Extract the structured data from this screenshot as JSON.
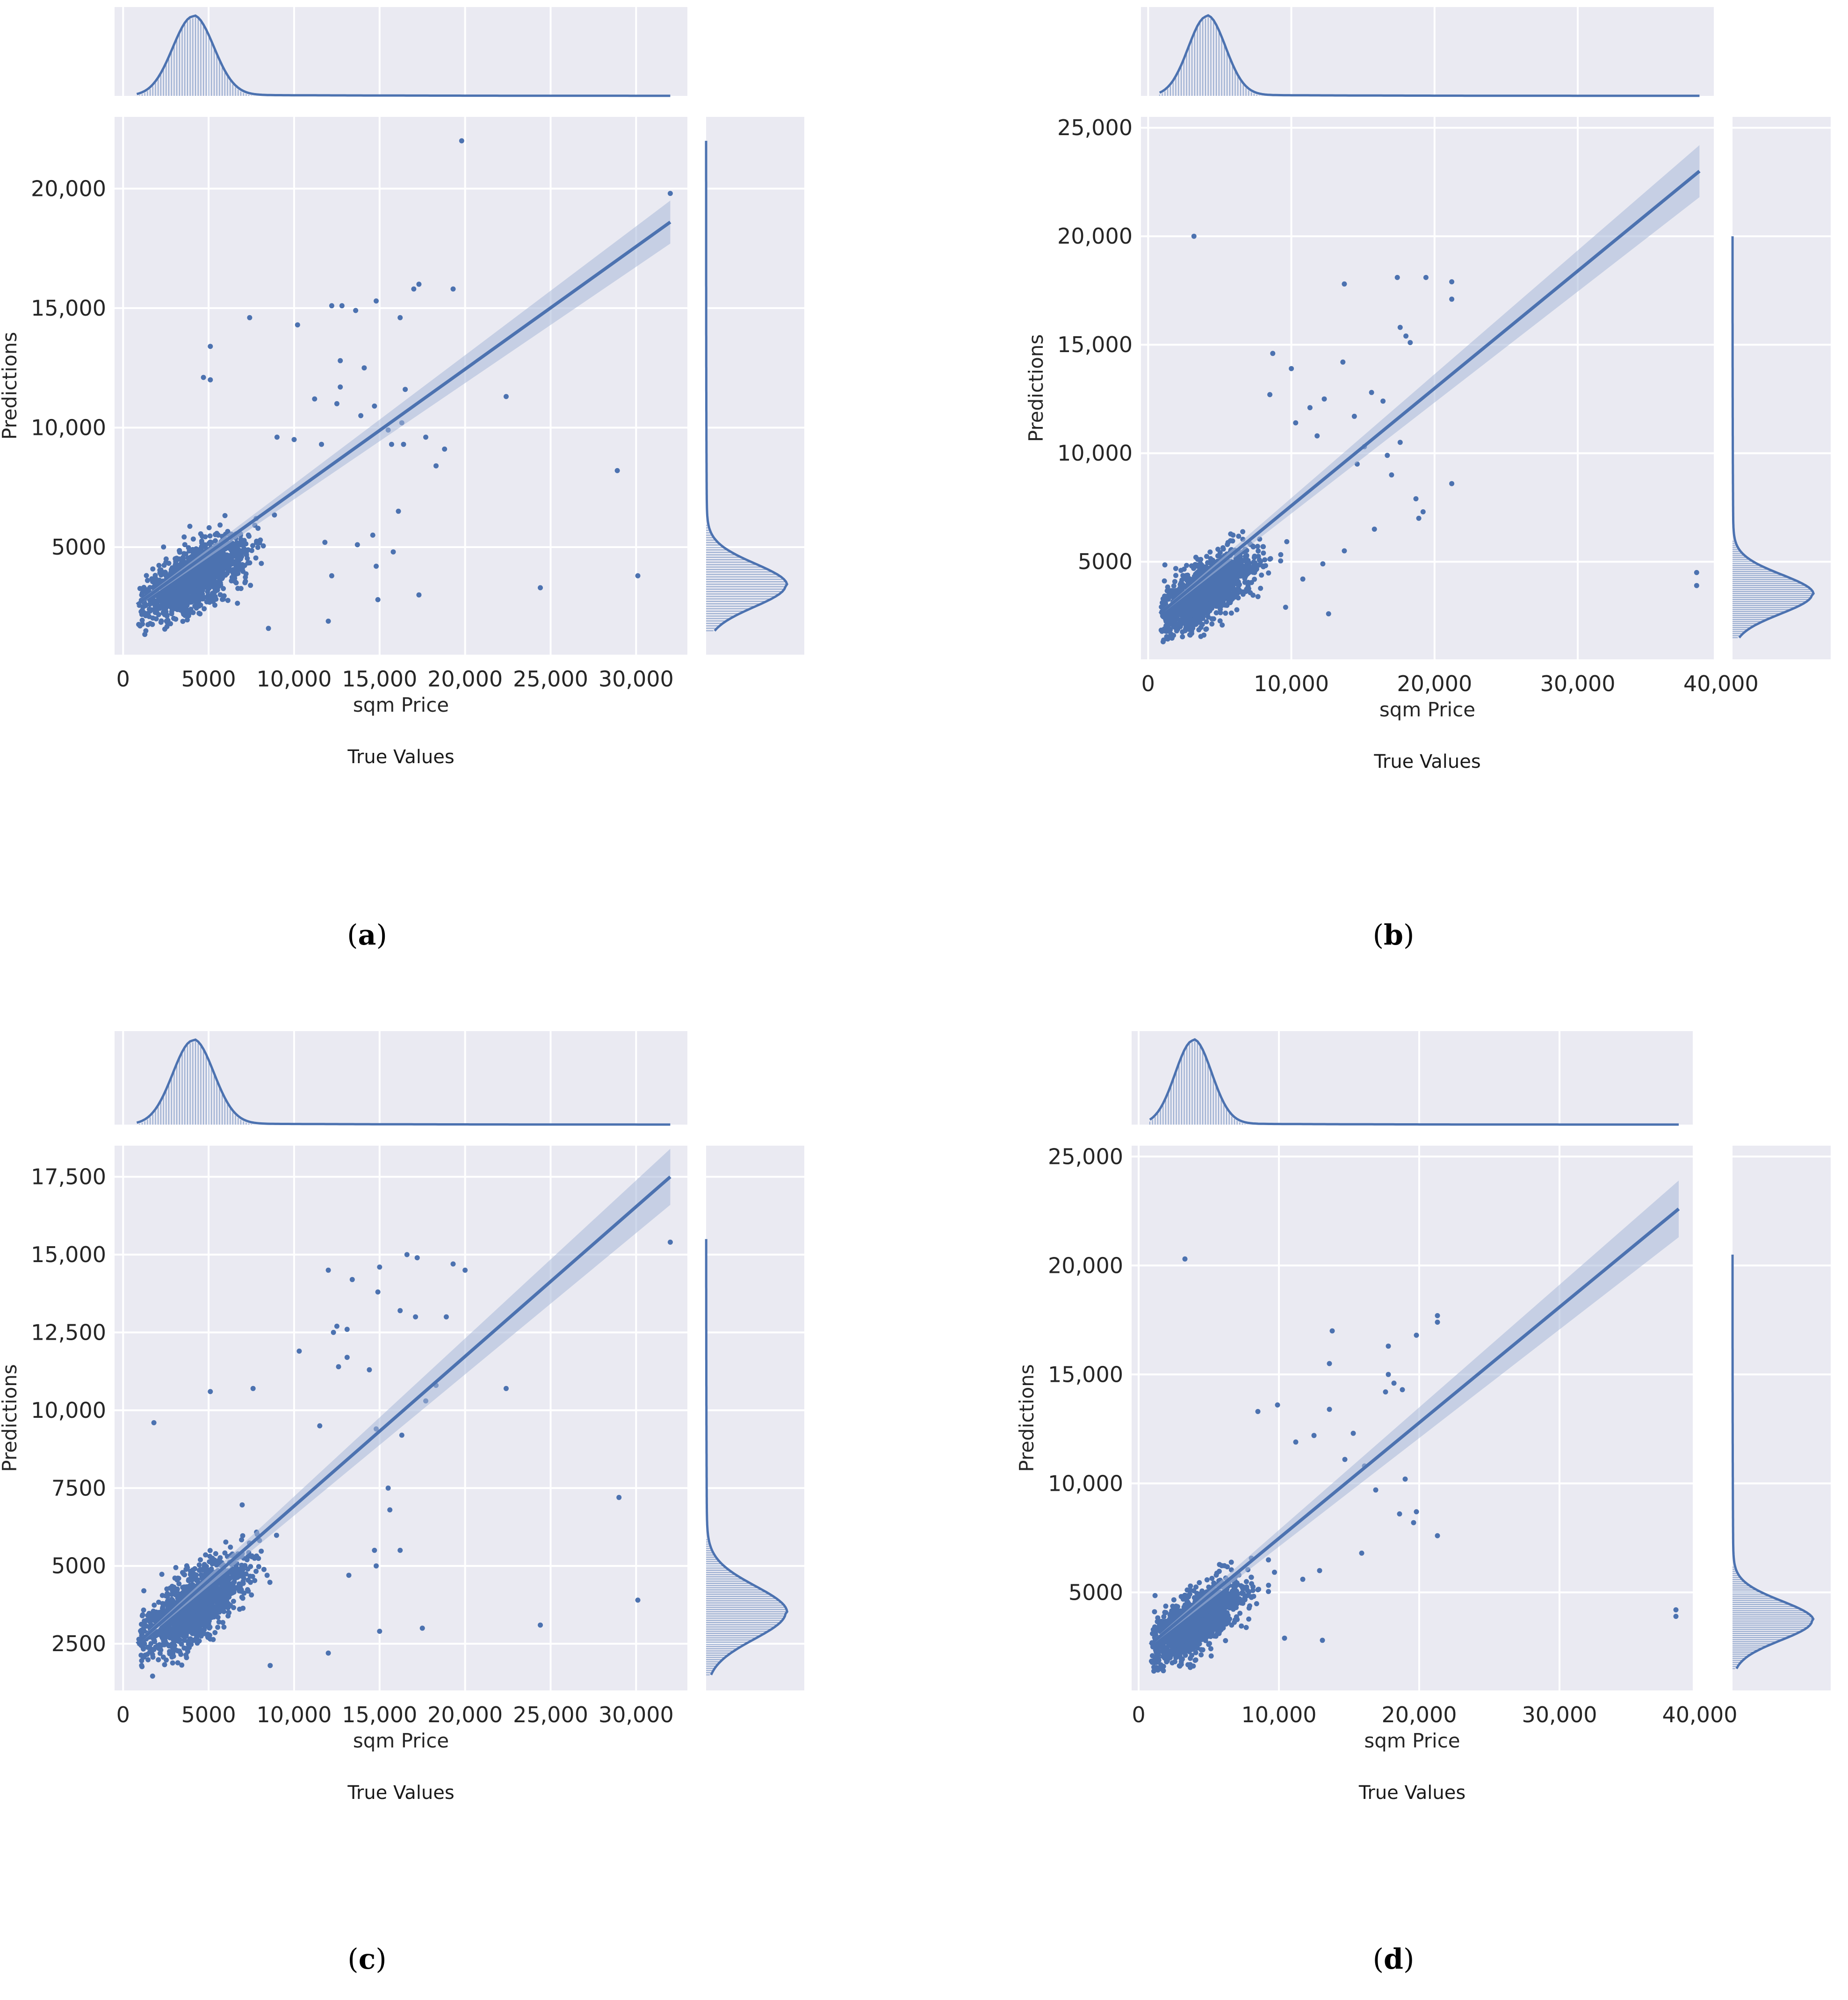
{
  "colors": {
    "panel_bg": "#eaeaf2",
    "grid": "#ffffff",
    "series": "#4c72b0",
    "band": "#a7b8d8"
  },
  "chart_data": [
    {
      "type": "scatter",
      "caption_letter": "a",
      "xlabel": "sqm Price",
      "ylabel": "Predictions",
      "bottom_label": "True Values",
      "xlim": [
        -500,
        33000
      ],
      "ylim": [
        500,
        23000
      ],
      "xticks": [
        0,
        5000,
        10000,
        15000,
        20000,
        25000,
        30000
      ],
      "xtick_labels": [
        "0",
        "5000",
        "10,000",
        "15,000",
        "20,000",
        "25,000",
        "30,000"
      ],
      "yticks": [
        5000,
        10000,
        15000,
        20000
      ],
      "ytick_labels": [
        "5000",
        "10,000",
        "15,000",
        "20,000"
      ],
      "regression": {
        "x": [
          800,
          32000
        ],
        "y": [
          2600,
          18600
        ],
        "ci_end": 900
      },
      "density_x": {
        "peak": 4100,
        "sd": 1200,
        "range": [
          800,
          32000
        ]
      },
      "density_y": {
        "peak": 3400,
        "sd": 900,
        "range": [
          1500,
          22000
        ]
      },
      "cluster": {
        "mean": [
          4200,
          3700
        ],
        "spread": [
          1700,
          1000
        ],
        "max": [
          9000,
          8000
        ]
      },
      "outliers": [
        [
          19800,
          22000
        ],
        [
          32000,
          19800
        ],
        [
          17300,
          16000
        ],
        [
          17000,
          15800
        ],
        [
          19300,
          15800
        ],
        [
          14800,
          15300
        ],
        [
          12200,
          15100
        ],
        [
          12800,
          15100
        ],
        [
          13600,
          14900
        ],
        [
          7400,
          14600
        ],
        [
          16200,
          14600
        ],
        [
          10200,
          14300
        ],
        [
          5100,
          13400
        ],
        [
          12700,
          12800
        ],
        [
          14100,
          12500
        ],
        [
          5100,
          12000
        ],
        [
          4700,
          12100
        ],
        [
          12700,
          11700
        ],
        [
          16500,
          11600
        ],
        [
          22400,
          11300
        ],
        [
          11200,
          11200
        ],
        [
          12500,
          11000
        ],
        [
          14700,
          10900
        ],
        [
          13900,
          10500
        ],
        [
          16300,
          10200
        ],
        [
          15500,
          9900
        ],
        [
          17700,
          9600
        ],
        [
          15700,
          9300
        ],
        [
          16400,
          9300
        ],
        [
          18800,
          9100
        ],
        [
          10000,
          9500
        ],
        [
          9000,
          9600
        ],
        [
          11600,
          9300
        ],
        [
          18300,
          8400
        ],
        [
          28900,
          8200
        ],
        [
          16100,
          6500
        ],
        [
          14600,
          5500
        ],
        [
          11800,
          5200
        ],
        [
          13700,
          5100
        ],
        [
          15800,
          4800
        ],
        [
          14800,
          4200
        ],
        [
          12200,
          3800
        ],
        [
          17300,
          3000
        ],
        [
          24400,
          3300
        ],
        [
          30100,
          3800
        ],
        [
          14900,
          2800
        ],
        [
          12000,
          1900
        ],
        [
          8500,
          1600
        ]
      ]
    },
    {
      "type": "scatter",
      "caption_letter": "b",
      "xlabel": "sqm Price",
      "ylabel": "Predictions",
      "bottom_label": "True Values",
      "xlim": [
        -500,
        39500
      ],
      "ylim": [
        500,
        25500
      ],
      "xticks": [
        0,
        10000,
        20000,
        30000,
        40000
      ],
      "xtick_labels": [
        "0",
        "10,000",
        "20,000",
        "30,000",
        "40,000"
      ],
      "yticks": [
        5000,
        10000,
        15000,
        20000,
        25000
      ],
      "ytick_labels": [
        "5000",
        "10,000",
        "15,000",
        "20,000",
        "25,000"
      ],
      "regression": {
        "x": [
          800,
          38500
        ],
        "y": [
          2600,
          23000
        ],
        "ci_end": 1200
      },
      "density_x": {
        "peak": 4100,
        "sd": 1300,
        "range": [
          800,
          38500
        ]
      },
      "density_y": {
        "peak": 3500,
        "sd": 900,
        "range": [
          1500,
          20000
        ]
      },
      "cluster": {
        "mean": [
          4200,
          3700
        ],
        "spread": [
          1800,
          1100
        ],
        "max": [
          10000,
          8500
        ]
      },
      "outliers": [
        [
          3200,
          20000
        ],
        [
          17400,
          18100
        ],
        [
          19400,
          18100
        ],
        [
          21200,
          17900
        ],
        [
          21200,
          17100
        ],
        [
          13700,
          17800
        ],
        [
          17600,
          15800
        ],
        [
          18000,
          15400
        ],
        [
          18300,
          15100
        ],
        [
          13600,
          14200
        ],
        [
          8700,
          14600
        ],
        [
          10000,
          13900
        ],
        [
          15600,
          12800
        ],
        [
          16400,
          12400
        ],
        [
          12300,
          12500
        ],
        [
          11300,
          12100
        ],
        [
          14400,
          11700
        ],
        [
          17600,
          10500
        ],
        [
          15100,
          10300
        ],
        [
          16700,
          9900
        ],
        [
          10300,
          11400
        ],
        [
          8500,
          12700
        ],
        [
          11800,
          10800
        ],
        [
          14600,
          9500
        ],
        [
          17000,
          9000
        ],
        [
          21200,
          8600
        ],
        [
          18700,
          7900
        ],
        [
          19200,
          7300
        ],
        [
          18900,
          7000
        ],
        [
          15800,
          6500
        ],
        [
          13700,
          5500
        ],
        [
          12200,
          4900
        ],
        [
          10800,
          4200
        ],
        [
          38300,
          4500
        ],
        [
          38300,
          3900
        ],
        [
          12600,
          2600
        ],
        [
          9600,
          2900
        ]
      ]
    },
    {
      "type": "scatter",
      "caption_letter": "c",
      "xlabel": "sqm Price",
      "ylabel": "Predictions",
      "bottom_label": "True Values",
      "xlim": [
        -500,
        33000
      ],
      "ylim": [
        1000,
        18500
      ],
      "xticks": [
        0,
        5000,
        10000,
        15000,
        20000,
        25000,
        30000
      ],
      "xtick_labels": [
        "0",
        "5000",
        "10,000",
        "15,000",
        "20,000",
        "25,000",
        "30,000"
      ],
      "yticks": [
        2500,
        5000,
        7500,
        10000,
        12500,
        15000,
        17500
      ],
      "ytick_labels": [
        "2500",
        "5000",
        "7500",
        "10,000",
        "12,500",
        "15,000",
        "17,500"
      ],
      "regression": {
        "x": [
          800,
          32000
        ],
        "y": [
          2500,
          17500
        ],
        "ci_end": 900
      },
      "density_x": {
        "peak": 4100,
        "sd": 1200,
        "range": [
          800,
          32000
        ]
      },
      "density_y": {
        "peak": 3500,
        "sd": 850,
        "range": [
          1500,
          15500
        ]
      },
      "cluster": {
        "mean": [
          4200,
          3700
        ],
        "spread": [
          1700,
          900
        ],
        "max": [
          9500,
          7500
        ]
      },
      "outliers": [
        [
          32000,
          15400
        ],
        [
          16600,
          15000
        ],
        [
          17200,
          14900
        ],
        [
          19300,
          14700
        ],
        [
          20000,
          14500
        ],
        [
          15000,
          14600
        ],
        [
          12000,
          14500
        ],
        [
          13400,
          14200
        ],
        [
          14900,
          13800
        ],
        [
          16200,
          13200
        ],
        [
          17100,
          13000
        ],
        [
          18900,
          13000
        ],
        [
          12500,
          12700
        ],
        [
          13100,
          12600
        ],
        [
          12300,
          12500
        ],
        [
          10300,
          11900
        ],
        [
          5100,
          10600
        ],
        [
          7600,
          10700
        ],
        [
          13100,
          11700
        ],
        [
          12600,
          11400
        ],
        [
          14400,
          11300
        ],
        [
          1800,
          9600
        ],
        [
          11500,
          9500
        ],
        [
          14800,
          9400
        ],
        [
          16300,
          9200
        ],
        [
          18300,
          10800
        ],
        [
          22400,
          10700
        ],
        [
          17700,
          10300
        ],
        [
          15500,
          7500
        ],
        [
          29000,
          7200
        ],
        [
          15600,
          6800
        ],
        [
          14700,
          5500
        ],
        [
          16200,
          5500
        ],
        [
          14800,
          5000
        ],
        [
          13200,
          4700
        ],
        [
          30100,
          3900
        ],
        [
          24400,
          3100
        ],
        [
          15000,
          2900
        ],
        [
          17500,
          3000
        ],
        [
          12000,
          2200
        ],
        [
          8600,
          1800
        ]
      ]
    },
    {
      "type": "scatter",
      "caption_letter": "d",
      "xlabel": "sqm Price",
      "ylabel": "Predictions",
      "bottom_label": "True Values",
      "xlim": [
        -500,
        39500
      ],
      "ylim": [
        500,
        25500
      ],
      "xticks": [
        0,
        10000,
        20000,
        30000,
        40000
      ],
      "xtick_labels": [
        "0",
        "10,000",
        "20,000",
        "30,000",
        "40,000"
      ],
      "yticks": [
        5000,
        10000,
        15000,
        20000,
        25000
      ],
      "ytick_labels": [
        "5000",
        "10,000",
        "15,000",
        "20,000",
        "25,000"
      ],
      "regression": {
        "x": [
          800,
          38500
        ],
        "y": [
          2600,
          22600
        ],
        "ci_end": 1300
      },
      "density_x": {
        "peak": 3900,
        "sd": 1300,
        "range": [
          800,
          38500
        ]
      },
      "density_y": {
        "peak": 3700,
        "sd": 900,
        "range": [
          1500,
          20500
        ]
      },
      "cluster": {
        "mean": [
          4200,
          3700
        ],
        "spread": [
          1800,
          1100
        ],
        "max": [
          10000,
          8500
        ]
      },
      "outliers": [
        [
          3300,
          20300
        ],
        [
          21300,
          17700
        ],
        [
          21300,
          17400
        ],
        [
          13800,
          17000
        ],
        [
          17800,
          16300
        ],
        [
          19800,
          16800
        ],
        [
          13600,
          15500
        ],
        [
          17800,
          15000
        ],
        [
          18200,
          14600
        ],
        [
          18800,
          14300
        ],
        [
          17600,
          14200
        ],
        [
          13600,
          13400
        ],
        [
          8500,
          13300
        ],
        [
          9900,
          13600
        ],
        [
          12500,
          12200
        ],
        [
          15300,
          12300
        ],
        [
          11200,
          11900
        ],
        [
          14700,
          11100
        ],
        [
          16100,
          10800
        ],
        [
          19000,
          10200
        ],
        [
          16900,
          9700
        ],
        [
          18600,
          8600
        ],
        [
          19800,
          8700
        ],
        [
          19600,
          8200
        ],
        [
          21300,
          7600
        ],
        [
          15900,
          6800
        ],
        [
          12900,
          6000
        ],
        [
          11700,
          5600
        ],
        [
          38300,
          4200
        ],
        [
          38300,
          3900
        ],
        [
          13100,
          2800
        ],
        [
          10400,
          2900
        ]
      ]
    }
  ]
}
